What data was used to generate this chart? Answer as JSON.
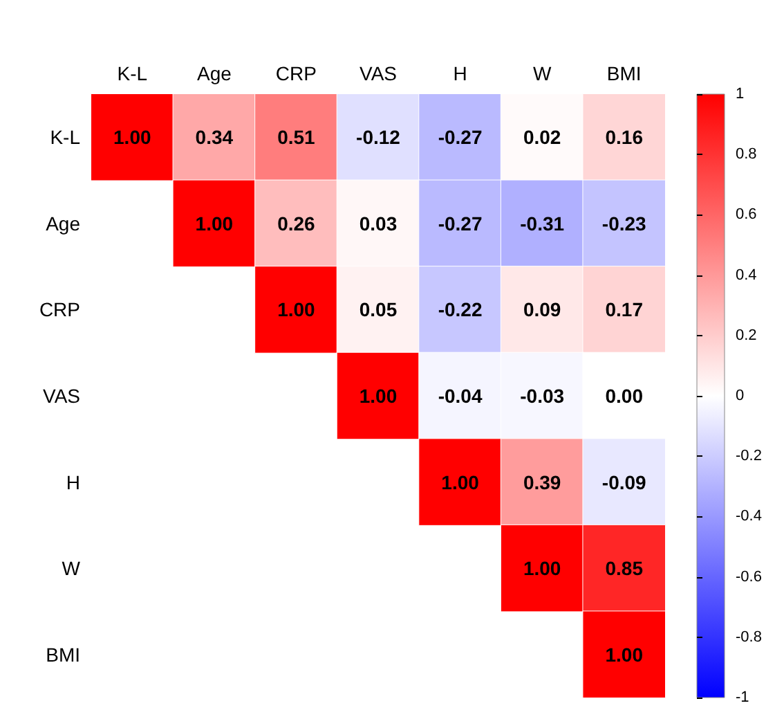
{
  "chart_data": {
    "type": "heatmap",
    "categories": [
      "K-L",
      "Age",
      "CRP",
      "VAS",
      "H",
      "W",
      "BMI"
    ],
    "y_categories": [
      "K-L",
      "Age",
      "CRP",
      "VAS",
      "H",
      "W",
      "BMI"
    ],
    "cells": [
      [
        1,
        0.34,
        0.51,
        -0.12,
        -0.27,
        0.02,
        0.16
      ],
      [
        null,
        1,
        0.26,
        0.03,
        -0.27,
        -0.31,
        -0.23
      ],
      [
        null,
        null,
        1,
        0.05,
        -0.22,
        0.09,
        0.17
      ],
      [
        null,
        null,
        null,
        1,
        -0.04,
        -0.03,
        0.0
      ],
      [
        null,
        null,
        null,
        null,
        1,
        0.39,
        -0.09
      ],
      [
        null,
        null,
        null,
        null,
        null,
        1,
        0.85
      ],
      [
        null,
        null,
        null,
        null,
        null,
        null,
        1
      ]
    ],
    "cell_labels": [
      [
        "1.00",
        "0.34",
        "0.51",
        "-0.12",
        "-0.27",
        "0.02",
        "0.16"
      ],
      [
        null,
        "1.00",
        "0.26",
        "0.03",
        "-0.27",
        "-0.31",
        "-0.23"
      ],
      [
        null,
        null,
        "1.00",
        "0.05",
        "-0.22",
        "0.09",
        "0.17"
      ],
      [
        null,
        null,
        null,
        "1.00",
        "-0.04",
        "-0.03",
        "0.00"
      ],
      [
        null,
        null,
        null,
        null,
        "1.00",
        "0.39",
        "-0.09"
      ],
      [
        null,
        null,
        null,
        null,
        null,
        "1.00",
        "0.85"
      ],
      [
        null,
        null,
        null,
        null,
        null,
        null,
        "1.00"
      ]
    ],
    "clim": [
      -1,
      1
    ],
    "cticks": [
      -1,
      -0.8,
      -0.6,
      -0.4,
      -0.2,
      0,
      0.2,
      0.4,
      0.6,
      0.8,
      1
    ],
    "colors": [
      "#0000ff",
      "#ffffff",
      "#ff0000"
    ]
  }
}
